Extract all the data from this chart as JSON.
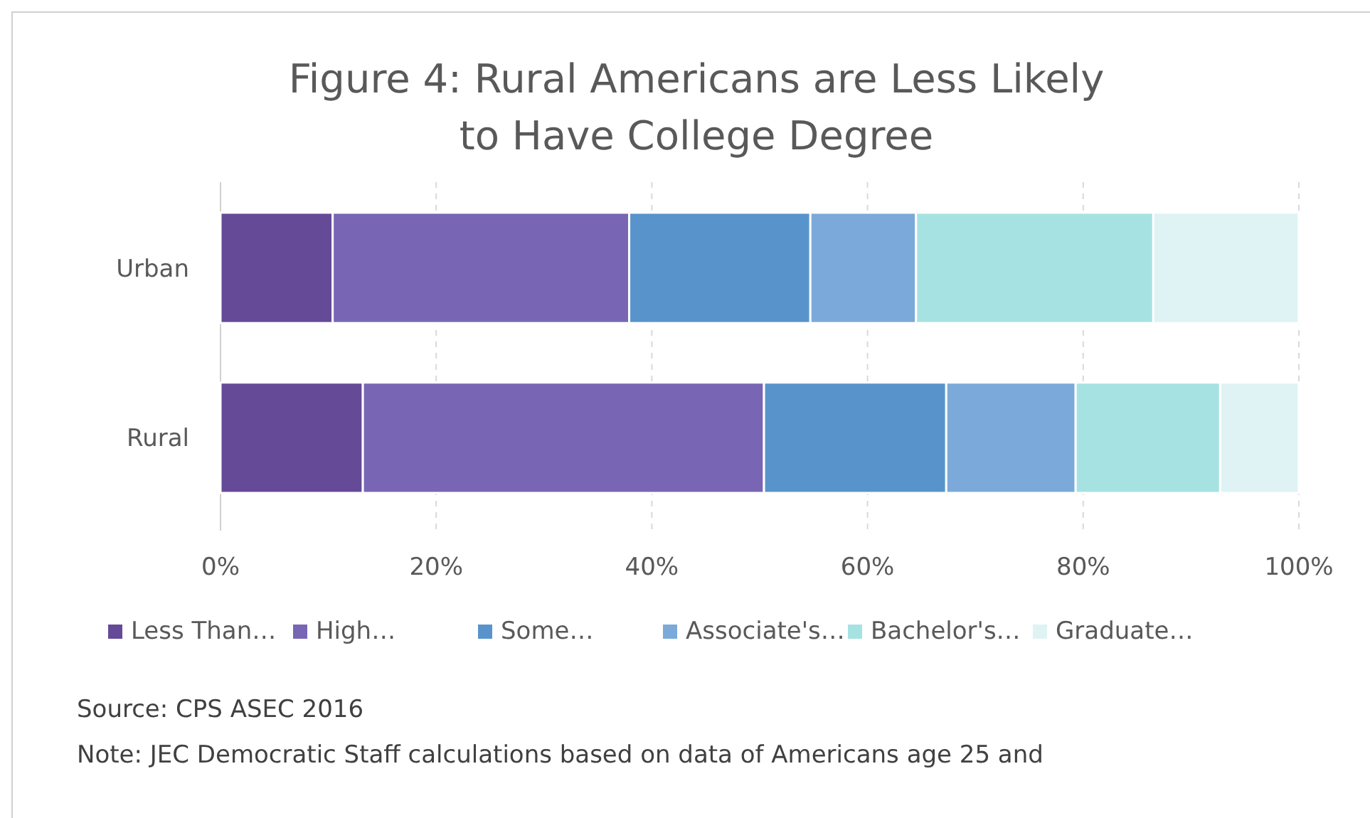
{
  "chart_data": {
    "type": "bar",
    "orientation": "horizontal",
    "stacked": true,
    "title": "Figure 4: Rural Americans are Less Likely to Have College Degree",
    "categories": [
      "Urban",
      "Rural"
    ],
    "series": [
      {
        "name": "Less Than…",
        "color": "#654a97",
        "values": [
          10.4,
          13.2
        ]
      },
      {
        "name": "High…",
        "color": "#7866b5",
        "values": [
          27.5,
          37.2
        ]
      },
      {
        "name": "Some…",
        "color": "#5894cb",
        "values": [
          16.8,
          16.9
        ]
      },
      {
        "name": "Associate's…",
        "color": "#7ba9da",
        "values": [
          9.8,
          12.0
        ]
      },
      {
        "name": "Bachelor's…",
        "color": "#a6e2e1",
        "values": [
          22.0,
          13.4
        ]
      },
      {
        "name": "Graduate…",
        "color": "#dff3f4",
        "values": [
          13.5,
          7.3
        ]
      }
    ],
    "xlim": [
      0,
      100
    ],
    "xticks": [
      {
        "value": 0,
        "label": "0%"
      },
      {
        "value": 20,
        "label": "20%"
      },
      {
        "value": 40,
        "label": "40%"
      },
      {
        "value": 60,
        "label": "60%"
      },
      {
        "value": 80,
        "label": "80%"
      },
      {
        "value": 100,
        "label": "100%"
      }
    ],
    "grid": "x",
    "legend": "bottom",
    "annotations": [
      "Source: CPS ASEC 2016",
      "Note: JEC Democratic Staff calculations based on data of Americans age 25 and"
    ]
  }
}
